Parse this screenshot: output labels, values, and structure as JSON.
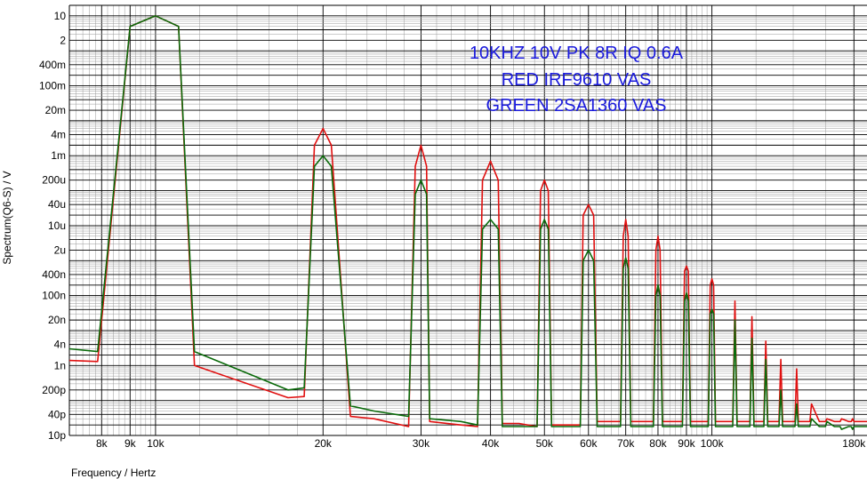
{
  "chart_data": {
    "type": "line",
    "title": "",
    "xlabel": "Frequency / Hertz",
    "ylabel": "Spectrum(Q6-S) / V",
    "x_scale": "log",
    "y_scale": "log",
    "xlim": [
      7000,
      190000
    ],
    "ylim": [
      1e-11,
      20
    ],
    "grid": true,
    "x_ticks": [
      {
        "value": 8000,
        "label": "8k"
      },
      {
        "value": 9000,
        "label": "9k"
      },
      {
        "value": 10000,
        "label": "10k"
      },
      {
        "value": 20000,
        "label": "20k"
      },
      {
        "value": 30000,
        "label": "30k"
      },
      {
        "value": 40000,
        "label": "40k"
      },
      {
        "value": 50000,
        "label": "50k"
      },
      {
        "value": 60000,
        "label": "60k"
      },
      {
        "value": 70000,
        "label": "70k"
      },
      {
        "value": 80000,
        "label": "80k"
      },
      {
        "value": 90000,
        "label": "90k"
      },
      {
        "value": 100000,
        "label": "100k"
      },
      {
        "value": 180000,
        "label": "180k"
      }
    ],
    "y_ticks": [
      {
        "value": 10,
        "label": "10"
      },
      {
        "value": 2,
        "label": "2"
      },
      {
        "value": 0.4,
        "label": "400m"
      },
      {
        "value": 0.1,
        "label": "100m"
      },
      {
        "value": 0.02,
        "label": "20m"
      },
      {
        "value": 0.004,
        "label": "4m"
      },
      {
        "value": 0.001,
        "label": "1m"
      },
      {
        "value": 0.0002,
        "label": "200u"
      },
      {
        "value": 4e-05,
        "label": "40u"
      },
      {
        "value": 1e-05,
        "label": "10u"
      },
      {
        "value": 2e-06,
        "label": "2u"
      },
      {
        "value": 4e-07,
        "label": "400n"
      },
      {
        "value": 1e-07,
        "label": "100n"
      },
      {
        "value": 2e-08,
        "label": "20n"
      },
      {
        "value": 4e-09,
        "label": "4n"
      },
      {
        "value": 1e-09,
        "label": "1n"
      },
      {
        "value": 2e-10,
        "label": "200p"
      },
      {
        "value": 4e-11,
        "label": "40p"
      },
      {
        "value": 1e-11,
        "label": "10p"
      }
    ],
    "annotations": [
      "10KHZ 10V PK 8R IQ 0.6A",
      "RED  IRF9610 VAS",
      "GREEN  2SA1360 VAS"
    ],
    "colors": {
      "red": "#e01010",
      "green": "#0a6a0a",
      "annotation": "#1a1adc",
      "grid": "#000000"
    },
    "series": [
      {
        "color": "red",
        "x": [
          7000,
          7870,
          9000,
          10000,
          11000,
          11750,
          17300,
          18500,
          19300,
          20000,
          20700,
          22400,
          24700,
          28500,
          29300,
          30000,
          30700,
          31100,
          35400,
          37900,
          38700,
          40000,
          41300,
          42000,
          45000,
          48500,
          49200,
          50000,
          50800,
          51500,
          55000,
          58000,
          58700,
          60000,
          61300,
          62200,
          66500,
          68500,
          69300,
          70000,
          70700,
          71500,
          75500,
          78500,
          79300,
          80000,
          80700,
          81500,
          86500,
          88500,
          89300,
          90000,
          90700,
          91500,
          96500,
          98500,
          99300,
          100000,
          100700,
          101500,
          107000,
          109000,
          110000,
          111000,
          115000,
          117000,
          118000,
          119000,
          122000,
          124000,
          125000,
          126000,
          130000,
          132000,
          133000,
          134000,
          139000,
          141000,
          142000,
          143000,
          149000,
          150000,
          151000,
          156000,
          159000,
          160000,
          161000,
          166000,
          169000,
          170000,
          171000,
          176000,
          178000,
          179000,
          180000,
          190000
        ],
        "y": [
          1.4e-09,
          1.3e-09,
          5,
          10,
          5,
          1e-09,
          1.2e-10,
          1.3e-10,
          0.002,
          0.006,
          0.002,
          3.5e-11,
          3e-11,
          1.8e-11,
          0.0005,
          0.002,
          0.0005,
          2.5e-11,
          2e-11,
          1.8e-11,
          0.0002,
          0.0007,
          0.0002,
          2.2e-11,
          2.2e-11,
          1.8e-11,
          0.0001,
          0.0002,
          0.0001,
          2e-11,
          2e-11,
          2e-11,
          2e-05,
          4e-05,
          2e-05,
          2.5e-11,
          2.5e-11,
          2.5e-11,
          5e-06,
          1.5e-05,
          5e-06,
          2.5e-11,
          2.5e-11,
          2.5e-11,
          2e-06,
          5e-06,
          2e-06,
          2.5e-11,
          2.5e-11,
          2.5e-11,
          5e-07,
          7e-07,
          5e-07,
          2.5e-11,
          2.5e-11,
          2.5e-11,
          2e-07,
          3e-07,
          2e-07,
          2.5e-11,
          2.5e-11,
          2.5e-11,
          7e-08,
          2.5e-11,
          2.5e-11,
          2.5e-11,
          2.5e-08,
          2.5e-11,
          2.5e-11,
          2.5e-11,
          5e-09,
          2.5e-11,
          2.5e-11,
          2.5e-11,
          1.5e-09,
          2.5e-11,
          2.5e-11,
          2.5e-11,
          8e-10,
          2.5e-11,
          2.5e-11,
          2.5e-11,
          8e-11,
          2.5e-11,
          2.5e-11,
          2.5e-11,
          3e-11,
          2.5e-11,
          2.5e-11,
          2.5e-11,
          3e-11,
          2.5e-11,
          2.5e-11,
          3e-11,
          2.5e-11,
          2.5e-11
        ]
      },
      {
        "color": "green",
        "x": [
          7000,
          7870,
          9000,
          10000,
          11000,
          11750,
          17300,
          18500,
          19300,
          20000,
          20700,
          22400,
          24700,
          28500,
          29300,
          30000,
          30700,
          31100,
          35400,
          37900,
          38700,
          40000,
          41300,
          42000,
          45000,
          48500,
          49200,
          50000,
          50800,
          51500,
          55000,
          58000,
          58700,
          60000,
          61300,
          62200,
          66500,
          68500,
          69300,
          70000,
          70700,
          71500,
          75500,
          78500,
          79300,
          80000,
          80700,
          81500,
          86500,
          88500,
          89300,
          90000,
          90700,
          91500,
          96500,
          98500,
          99300,
          100000,
          100700,
          101500,
          107000,
          109000,
          110000,
          111000,
          115000,
          117000,
          118000,
          119000,
          122000,
          124000,
          125000,
          126000,
          130000,
          132000,
          133000,
          134000,
          139000,
          141000,
          142000,
          143000,
          149000,
          150000,
          151000,
          156000,
          159000,
          160000,
          161000,
          166000,
          169000,
          170000,
          171000,
          176000,
          178000,
          179000,
          180000,
          190000
        ],
        "y": [
          3e-09,
          2.5e-09,
          5,
          10,
          5,
          2.5e-09,
          2e-10,
          2.3e-10,
          0.0005,
          0.001,
          0.0005,
          7e-11,
          5e-11,
          3.5e-11,
          8e-05,
          0.0002,
          8e-05,
          3e-11,
          2.5e-11,
          2e-11,
          8e-06,
          1.5e-05,
          8e-06,
          1.8e-11,
          1.8e-11,
          1.8e-11,
          8e-06,
          1.5e-05,
          8e-06,
          1.8e-11,
          1.8e-11,
          1.8e-11,
          1e-06,
          2e-06,
          1e-06,
          1.8e-11,
          1.8e-11,
          1.8e-11,
          6e-07,
          1.2e-06,
          6e-07,
          1.8e-11,
          1.8e-11,
          1.8e-11,
          1e-07,
          2e-07,
          1e-07,
          1.8e-11,
          1.8e-11,
          1.8e-11,
          7e-08,
          1.2e-07,
          7e-08,
          1.8e-11,
          1.8e-11,
          1.8e-11,
          3e-08,
          4e-08,
          3e-08,
          1.8e-11,
          1.8e-11,
          1.8e-11,
          2e-08,
          1.8e-11,
          1.8e-11,
          1.8e-11,
          6e-09,
          1.8e-11,
          1.8e-11,
          1.8e-11,
          1.5e-09,
          1.8e-11,
          1.8e-11,
          1.8e-11,
          2e-10,
          1.8e-11,
          1.8e-11,
          1.8e-11,
          8e-11,
          1.8e-11,
          1.8e-11,
          1.8e-11,
          3e-11,
          1.8e-11,
          1.8e-11,
          1.8e-11,
          2.5e-11,
          1.8e-11,
          1.8e-11,
          1.8e-11,
          1.5e-11,
          1.8e-11,
          1.8e-11,
          1.5e-11,
          1.8e-11,
          1.8e-11
        ]
      }
    ]
  }
}
